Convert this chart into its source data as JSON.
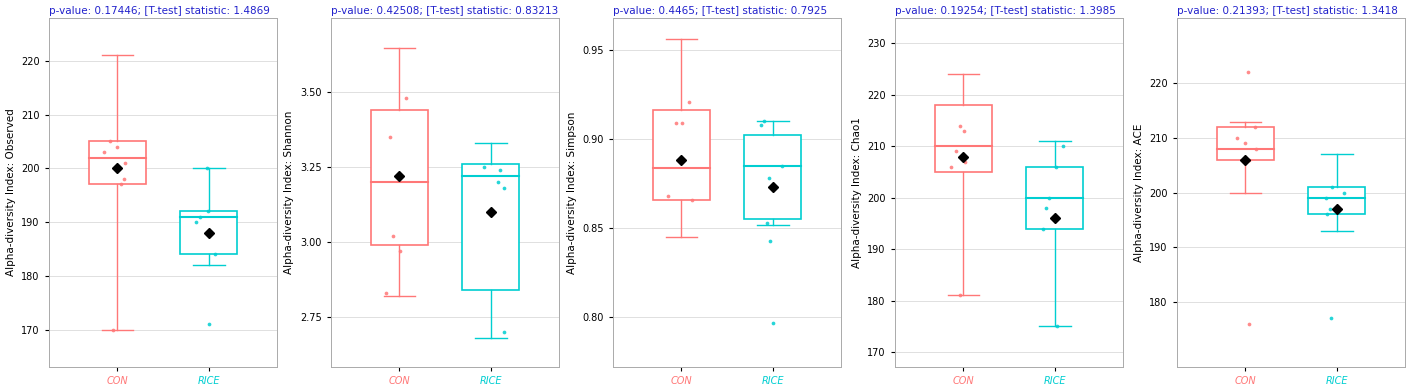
{
  "panels": [
    {
      "title": "p-value: 0.17446; [T-test] statistic: 1.4869",
      "ylabel": "Alpha-diversity Index: Observed",
      "ylim": [
        163,
        228
      ],
      "yticks": [
        170,
        180,
        190,
        200,
        210,
        220
      ],
      "groups": [
        "CON",
        "RICE"
      ],
      "colors": [
        "#FF7777",
        "#00CED1"
      ],
      "con": {
        "whisker_low": 170,
        "q1": 197,
        "median": 202,
        "q3": 205,
        "whisker_high": 221,
        "mean": 200,
        "outliers": [
          170
        ]
      },
      "rice": {
        "whisker_low": 182,
        "q1": 184,
        "median": 191,
        "q3": 192,
        "whisker_high": 200,
        "mean": 188,
        "outliers": [
          171
        ]
      },
      "con_jitter": [
        201,
        203,
        197,
        198,
        204,
        205
      ],
      "rice_jitter": [
        191,
        190,
        192,
        184,
        200
      ]
    },
    {
      "title": "p-value: 0.42508; [T-test] statistic: 0.83213",
      "ylabel": "Alpha-diversity Index: Shannon",
      "ylim": [
        2.58,
        3.75
      ],
      "yticks": [
        2.75,
        3.0,
        3.25,
        3.5
      ],
      "groups": [
        "CON",
        "RICE"
      ],
      "colors": [
        "#FF7777",
        "#00CED1"
      ],
      "con": {
        "whisker_low": 2.82,
        "q1": 2.99,
        "median": 3.2,
        "q3": 3.44,
        "whisker_high": 3.65,
        "mean": 3.22,
        "outliers": []
      },
      "rice": {
        "whisker_low": 2.68,
        "q1": 2.84,
        "median": 3.22,
        "q3": 3.26,
        "whisker_high": 3.33,
        "mean": 3.1,
        "outliers": []
      },
      "con_jitter": [
        3.35,
        3.48,
        3.02,
        2.97,
        2.83
      ],
      "rice_jitter": [
        3.2,
        3.25,
        3.24,
        3.18,
        2.7
      ]
    },
    {
      "title": "p-value: 0.4465; [T-test] statistic: 0.7925",
      "ylabel": "Alpha-diversity Index: Simpson",
      "ylim": [
        0.772,
        0.968
      ],
      "yticks": [
        0.8,
        0.85,
        0.9,
        0.95
      ],
      "groups": [
        "CON",
        "RICE"
      ],
      "colors": [
        "#FF7777",
        "#00CED1"
      ],
      "con": {
        "whisker_low": 0.845,
        "q1": 0.866,
        "median": 0.884,
        "q3": 0.916,
        "whisker_high": 0.956,
        "mean": 0.888,
        "outliers": []
      },
      "rice": {
        "whisker_low": 0.852,
        "q1": 0.855,
        "median": 0.885,
        "q3": 0.902,
        "whisker_high": 0.91,
        "mean": 0.873,
        "outliers": [
          0.797,
          0.843
        ]
      },
      "con_jitter": [
        0.909,
        0.921,
        0.866,
        0.868,
        0.909
      ],
      "rice_jitter": [
        0.885,
        0.91,
        0.908,
        0.878,
        0.853
      ]
    },
    {
      "title": "p-value: 0.19254; [T-test] statistic: 1.3985",
      "ylabel": "Alpha-diversity Index: Chao1",
      "ylim": [
        167,
        235
      ],
      "yticks": [
        170,
        180,
        190,
        200,
        210,
        220,
        230
      ],
      "groups": [
        "CON",
        "RICE"
      ],
      "colors": [
        "#FF7777",
        "#00CED1"
      ],
      "con": {
        "whisker_low": 181,
        "q1": 205,
        "median": 210,
        "q3": 218,
        "whisker_high": 224,
        "mean": 208,
        "outliers": [
          181
        ]
      },
      "rice": {
        "whisker_low": 175,
        "q1": 194,
        "median": 200,
        "q3": 206,
        "whisker_high": 211,
        "mean": 196,
        "outliers": [
          175
        ]
      },
      "con_jitter": [
        209,
        213,
        207,
        206,
        214
      ],
      "rice_jitter": [
        200,
        206,
        198,
        194,
        210
      ]
    },
    {
      "title": "p-value: 0.21393; [T-test] statistic: 1.3418",
      "ylabel": "Alpha-diversity Index: ACE",
      "ylim": [
        168,
        232
      ],
      "yticks": [
        180,
        190,
        200,
        210,
        220
      ],
      "groups": [
        "CON",
        "RICE"
      ],
      "colors": [
        "#FF7777",
        "#00CED1"
      ],
      "con": {
        "whisker_low": 200,
        "q1": 206,
        "median": 208,
        "q3": 212,
        "whisker_high": 213,
        "mean": 206,
        "outliers": [
          176,
          222
        ]
      },
      "rice": {
        "whisker_low": 193,
        "q1": 196,
        "median": 199,
        "q3": 201,
        "whisker_high": 207,
        "mean": 197,
        "outliers": [
          177
        ]
      },
      "con_jitter": [
        206,
        209,
        208,
        210,
        212
      ],
      "rice_jitter": [
        199,
        200,
        197,
        196,
        201
      ]
    }
  ],
  "title_color": "#2222cc",
  "title_fontsize": 7.5,
  "label_fontsize": 7.5,
  "tick_fontsize": 7,
  "bg_color": "#ffffff",
  "plot_bg_color": "#ffffff",
  "box_width": 0.25,
  "mean_marker": "D",
  "mean_marker_size": 5,
  "jitter_size": 3.0,
  "con_color": "#FF7777",
  "rice_color": "#00CED1"
}
